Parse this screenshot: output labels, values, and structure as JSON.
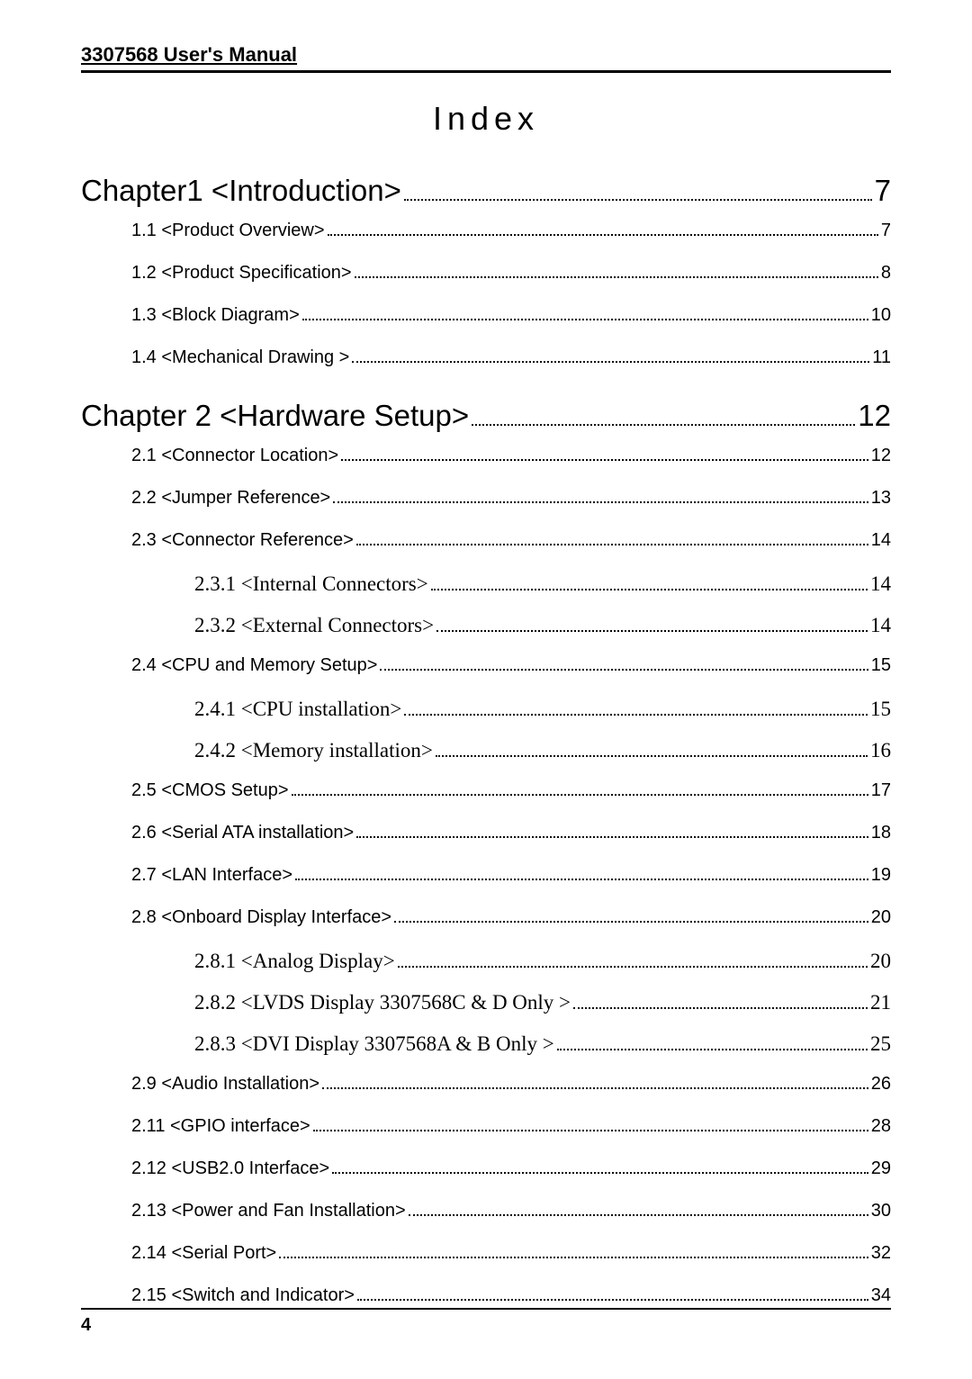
{
  "header": "3307568 User's Manual",
  "title": "Index",
  "footer_page": "4",
  "toc": [
    {
      "level": "chapter",
      "label": "Chapter1 <Introduction>",
      "page": "7"
    },
    {
      "level": "section",
      "label": "1.1 <Product Overview>",
      "page": "7"
    },
    {
      "level": "section",
      "label": "1.2 <Product Specification>",
      "page": "8"
    },
    {
      "level": "section",
      "label": "1.3 <Block Diagram>",
      "page": "10"
    },
    {
      "level": "section",
      "label": "1.4 <Mechanical Drawing >",
      "page": "11"
    },
    {
      "level": "chapter",
      "label": "Chapter 2 <Hardware Setup>",
      "page": "12"
    },
    {
      "level": "section",
      "label": "2.1 <Connector Location>",
      "page": "12"
    },
    {
      "level": "section",
      "label": "2.2 <Jumper Reference>",
      "page": "13"
    },
    {
      "level": "section",
      "label": "2.3 <Connector Reference>",
      "page": "14"
    },
    {
      "level": "subsection",
      "label": "2.3.1 <Internal Connectors>",
      "page": "14"
    },
    {
      "level": "subsection",
      "label": "2.3.2 <External Connectors>",
      "page": "14"
    },
    {
      "level": "section",
      "label": "2.4 <CPU and Memory Setup>",
      "page": "15"
    },
    {
      "level": "subsection",
      "label": "2.4.1 <CPU installation>",
      "page": "15"
    },
    {
      "level": "subsection",
      "label": "2.4.2 <Memory installation>",
      "page": "16"
    },
    {
      "level": "section",
      "label": "2.5 <CMOS Setup>",
      "page": "17"
    },
    {
      "level": "section",
      "label": "2.6 <Serial ATA installation>",
      "page": "18"
    },
    {
      "level": "section",
      "label": "2.7 <LAN Interface>",
      "page": "19"
    },
    {
      "level": "section",
      "label": "2.8 <Onboard Display Interface>",
      "page": "20"
    },
    {
      "level": "subsection",
      "label": "2.8.1 <Analog Display>",
      "page": "20"
    },
    {
      "level": "subsection",
      "label": "2.8.2 <LVDS Display 3307568C & D Only >",
      "page": "21"
    },
    {
      "level": "subsection",
      "label": "2.8.3 <DVI Display 3307568A & B Only >",
      "page": "25"
    },
    {
      "level": "section",
      "label": "2.9 <Audio Installation>",
      "page": "26"
    },
    {
      "level": "section",
      "label": "2.11 <GPIO interface>",
      "page": "28"
    },
    {
      "level": "section",
      "label": "2.12 <USB2.0 Interface>",
      "page": "29"
    },
    {
      "level": "section",
      "label": "2.13 <Power and Fan Installation>",
      "page": "30"
    },
    {
      "level": "section",
      "label": "2.14 <Serial Port>",
      "page": "32"
    },
    {
      "level": "section",
      "label": "2.15 <Switch and Indicator>",
      "page": "34"
    }
  ]
}
